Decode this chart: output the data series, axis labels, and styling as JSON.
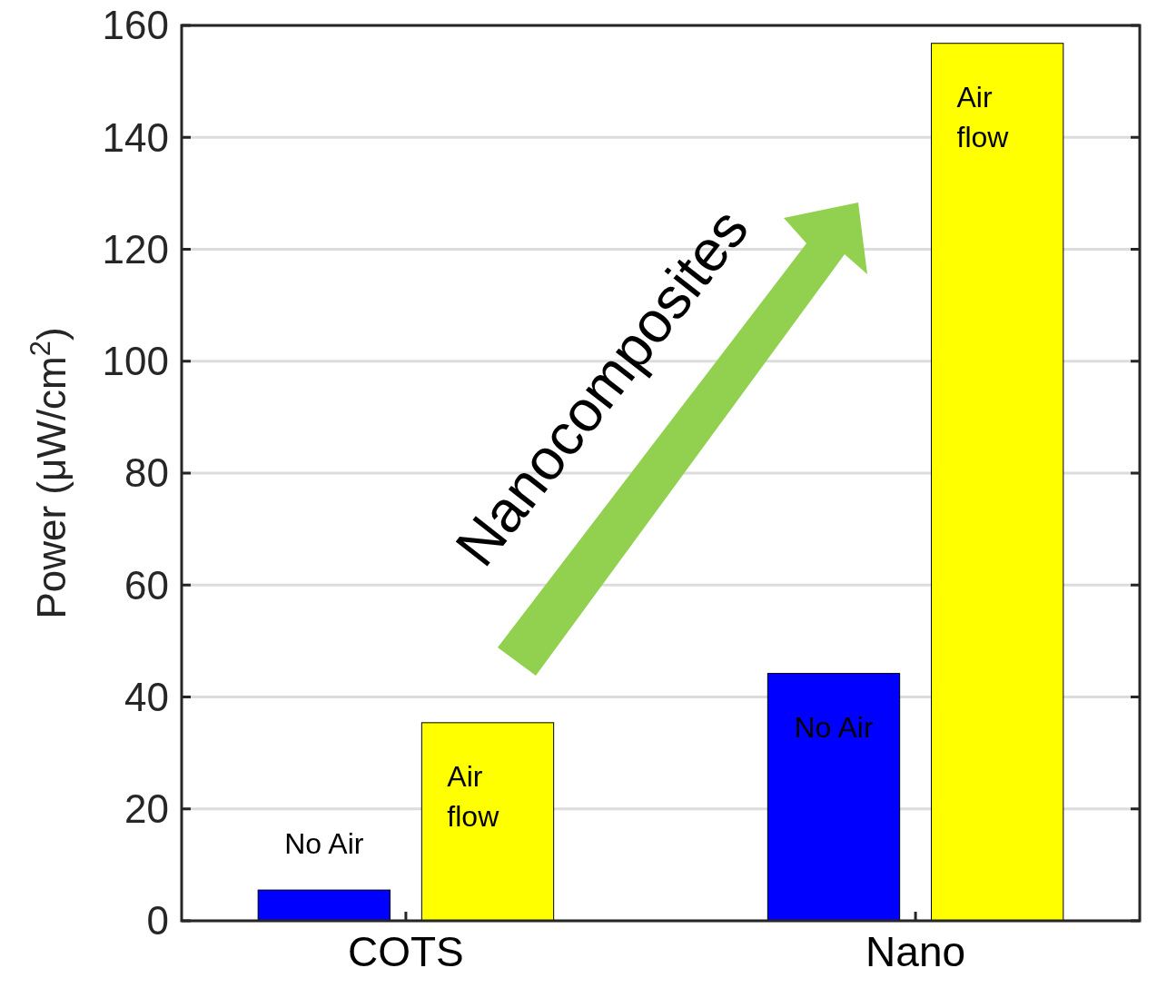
{
  "chart_data": {
    "type": "bar",
    "ylabel": "Power (μW/cm$^{2}$)",
    "categories": [
      "COTS",
      "Nano"
    ],
    "series": [
      {
        "name": "No Air",
        "color": "#0000ff",
        "values": [
          5.5,
          44.2
        ]
      },
      {
        "name": "Air flow",
        "color": "#ffff00",
        "values": [
          35.4,
          156.8
        ]
      }
    ],
    "ylim": [
      0,
      160
    ],
    "yticks": [
      0,
      20,
      40,
      60,
      80,
      100,
      120,
      140,
      160
    ],
    "grid": "y",
    "annotations": [
      "Nanocomposites"
    ]
  }
}
